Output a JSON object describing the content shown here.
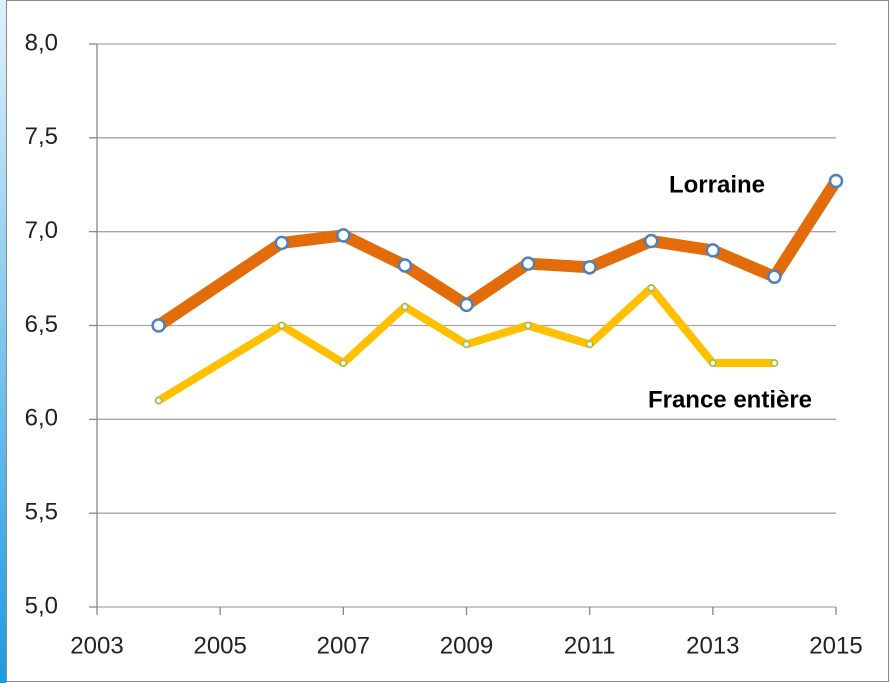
{
  "chart_data": {
    "type": "line",
    "x": [
      2004,
      2006,
      2007,
      2008,
      2009,
      2010,
      2011,
      2012,
      2013,
      2014,
      2015
    ],
    "series": [
      {
        "name": "Lorraine",
        "color": "#e36c0a",
        "values": [
          6.5,
          6.94,
          6.98,
          6.82,
          6.61,
          6.83,
          6.81,
          6.95,
          6.9,
          6.76,
          7.27
        ]
      },
      {
        "name": "France entière",
        "color": "#ffc000",
        "values": [
          6.1,
          6.5,
          6.3,
          6.6,
          6.4,
          6.5,
          6.4,
          6.7,
          6.3,
          6.3,
          null
        ]
      }
    ],
    "xlim": [
      2003,
      2015
    ],
    "xticks": [
      2003,
      2005,
      2007,
      2009,
      2011,
      2013,
      2015
    ],
    "ylim": [
      5,
      8
    ],
    "yticks": [
      {
        "value": 5,
        "label": "5,0"
      },
      {
        "value": 5.5,
        "label": "5,5"
      },
      {
        "value": 6,
        "label": "6,0"
      },
      {
        "value": 6.5,
        "label": "6,5"
      },
      {
        "value": 7,
        "label": "7,0"
      },
      {
        "value": 7.5,
        "label": "7,5"
      },
      {
        "value": 8,
        "label": "8,0"
      }
    ],
    "grid": true
  }
}
